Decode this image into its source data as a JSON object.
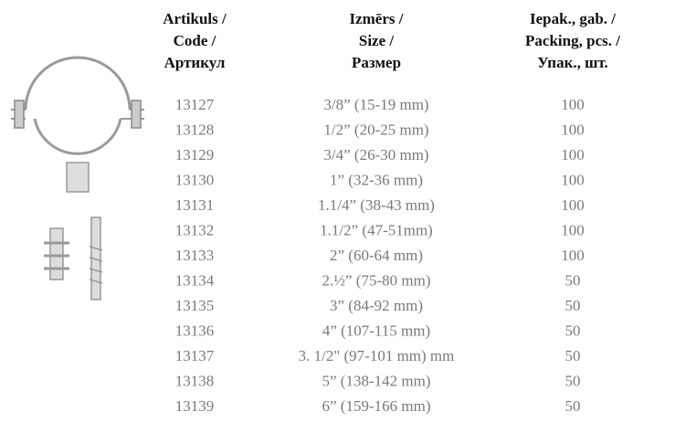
{
  "table": {
    "headers": [
      [
        "Artikuls  /",
        "Code /",
        "Артикул"
      ],
      [
        "Izmērs /",
        "Size /",
        "Размер"
      ],
      [
        "Iepak., gab. /",
        "Packing, pcs. /",
        "Упак., шт."
      ]
    ],
    "rows": [
      [
        "13127",
        "3/8” (15-19 mm)",
        "100"
      ],
      [
        "13128",
        "1/2” (20-25 mm)",
        "100"
      ],
      [
        "13129",
        "3/4” (26-30 mm)",
        "100"
      ],
      [
        "13130",
        "1” (32-36 mm)",
        "100"
      ],
      [
        "13131",
        "1.1/4” (38-43 mm)",
        "100"
      ],
      [
        "13132",
        "1.1/2” (47-51mm)",
        "100"
      ],
      [
        "13133",
        "2” (60-64 mm)",
        "100"
      ],
      [
        "13134",
        "2.½” (75-80 mm)",
        "50"
      ],
      [
        "13135",
        "3” (84-92 mm)",
        "50"
      ],
      [
        "13136",
        "4” (107-115 mm)",
        "50"
      ],
      [
        "13137",
        "3. 1/2\" (97-101 mm) mm",
        "50"
      ],
      [
        "13138",
        "5” (138-142 mm)",
        "50"
      ],
      [
        "13139",
        "6” (159-166 mm)",
        "50"
      ]
    ]
  }
}
